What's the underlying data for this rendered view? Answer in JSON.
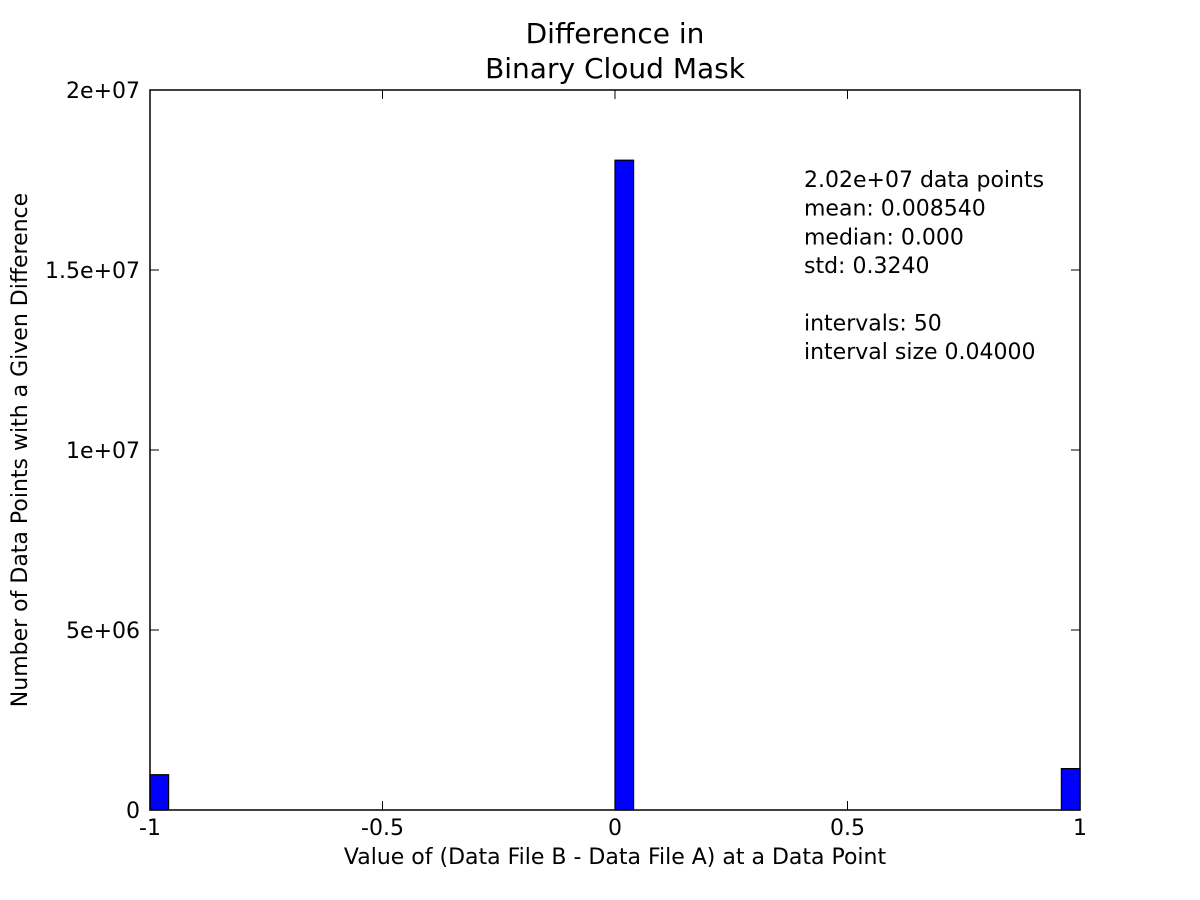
{
  "chart_data": {
    "type": "bar",
    "title": [
      "Difference in",
      "Binary Cloud Mask"
    ],
    "xlabel": "Value of (Data File B - Data File A) at a Data Point",
    "ylabel": "Number of Data Points with a Given Difference",
    "xlim": [
      -1,
      1
    ],
    "ylim": [
      0,
      20000000
    ],
    "xticks": [
      {
        "value": -1,
        "label": "-1"
      },
      {
        "value": -0.5,
        "label": "-0.5"
      },
      {
        "value": 0,
        "label": "0"
      },
      {
        "value": 0.5,
        "label": "0.5"
      },
      {
        "value": 1,
        "label": "1"
      }
    ],
    "yticks": [
      {
        "value": 0,
        "label": "0"
      },
      {
        "value": 5000000,
        "label": "5e+06"
      },
      {
        "value": 10000000,
        "label": "1e+07"
      },
      {
        "value": 15000000,
        "label": "1.5e+07"
      },
      {
        "value": 20000000,
        "label": "2e+07"
      }
    ],
    "bins": [
      {
        "x0": -1.0,
        "x1": -0.96,
        "count": 980000
      },
      {
        "x0": 0.0,
        "x1": 0.04,
        "count": 18050000
      },
      {
        "x0": 0.96,
        "x1": 1.0,
        "count": 1150000
      }
    ],
    "bar_color": "#0000ff",
    "annotation": [
      "2.02e+07 data points",
      "mean: 0.008540",
      "median: 0.000",
      "std: 0.3240",
      "",
      "intervals: 50",
      "interval size 0.04000"
    ],
    "grid": false
  }
}
